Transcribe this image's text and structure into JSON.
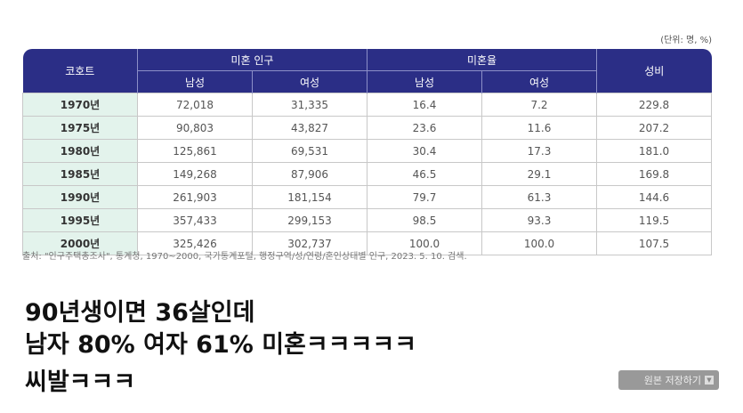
{
  "unit": "(단위: 명, %)",
  "headers": {
    "cohort": "코호트",
    "unmarried_pop": "미혼 인구",
    "unmarried_rate": "미혼율",
    "sex_ratio": "성비",
    "male": "남성",
    "female": "여성"
  },
  "rows": [
    [
      "1970년",
      "72,018",
      "31,335",
      "16.4",
      "7.2",
      "229.8"
    ],
    [
      "1975년",
      "90,803",
      "43,827",
      "23.6",
      "11.6",
      "207.2"
    ],
    [
      "1980년",
      "125,861",
      "69,531",
      "30.4",
      "17.3",
      "181.0"
    ],
    [
      "1985년",
      "149,268",
      "87,906",
      "46.5",
      "29.1",
      "169.8"
    ],
    [
      "1990년",
      "261,903",
      "181,154",
      "79.7",
      "61.3",
      "144.6"
    ],
    [
      "1995년",
      "357,433",
      "299,153",
      "98.5",
      "93.3",
      "119.5"
    ],
    [
      "2000년",
      "325,426",
      "302,737",
      "100.0",
      "100.0",
      "107.5"
    ]
  ],
  "source": "출처: \"인구주택총조사\", 통계청, 1970~2000, 국가통계포털, 행정구역/성/연령/혼인상태별 인구, 2023. 5. 10. 검색.",
  "caption": [
    "90년생이면 36살인데",
    "남자 80% 여자 61% 미혼ㅋㅋㅋㅋㅋ",
    "씨발ㅋㅋㅋ"
  ],
  "save_button": "원본 저장하기",
  "colors": {
    "header": "#2b2e86",
    "cohort_cell": "#e3f3ec"
  }
}
